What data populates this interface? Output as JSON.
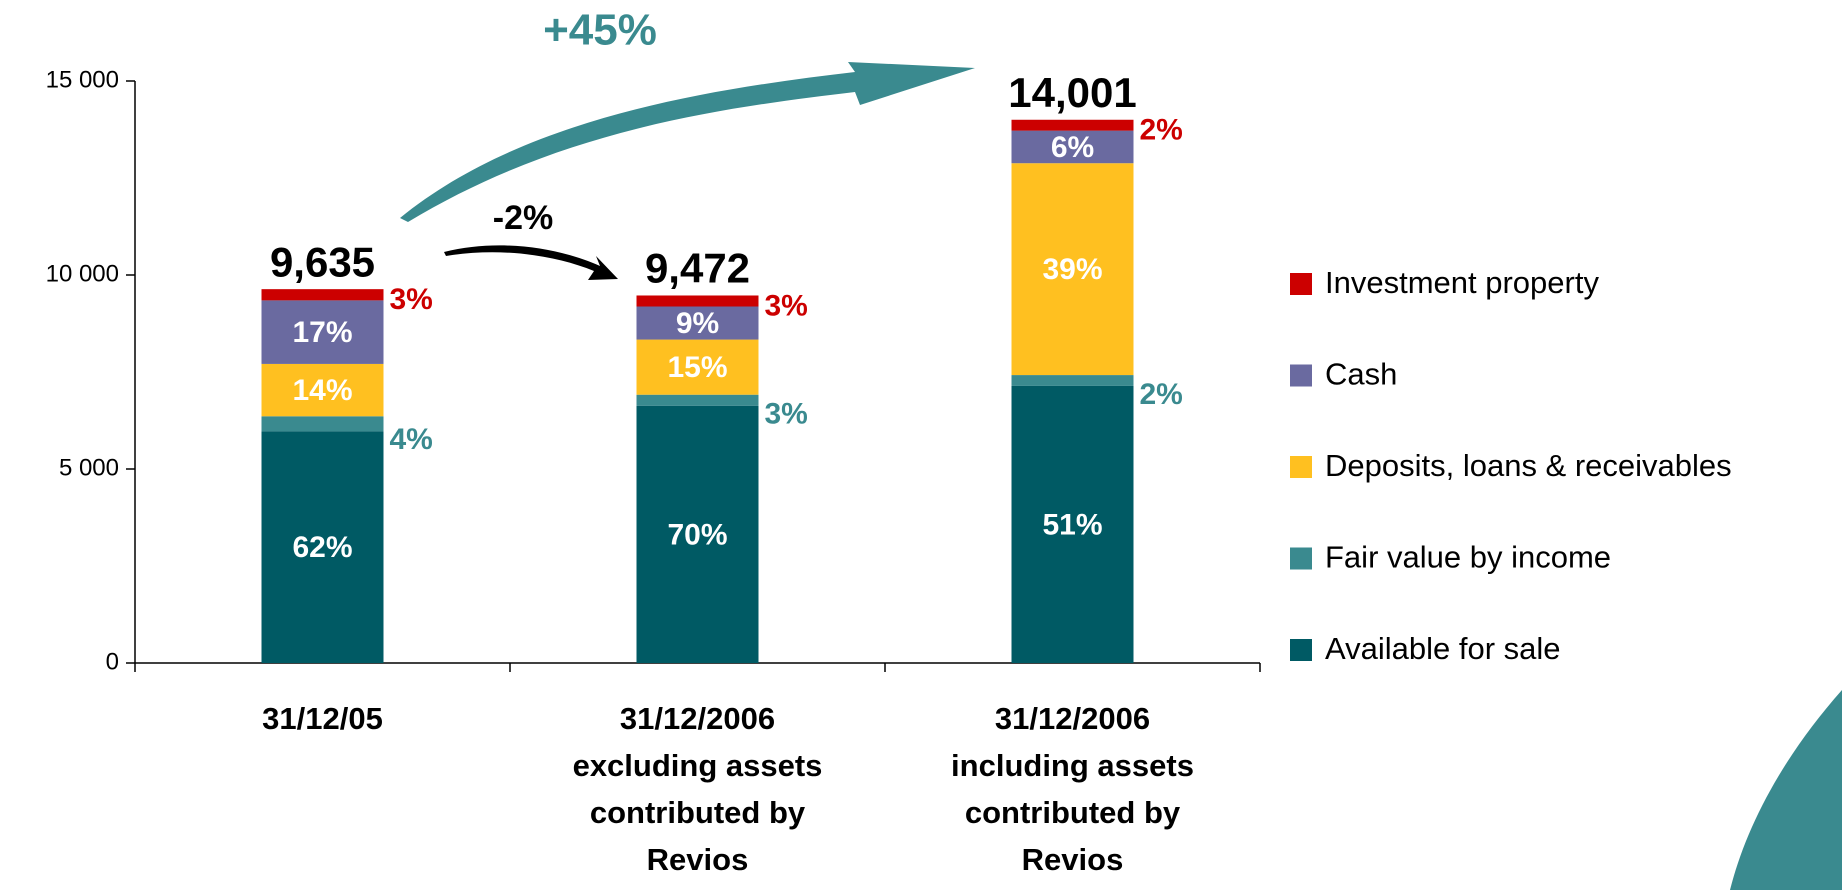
{
  "chart_data": {
    "type": "stacked-bar",
    "categories": [
      "31/12/05",
      "31/12/2006\nexcluding assets\ncontributed by\nRevios",
      "31/12/2006\nincluding assets\ncontributed by\nRevios"
    ],
    "series": [
      {
        "name": "Available for sale",
        "color": "#005a64",
        "values": [
          5974,
          6631,
          7141
        ],
        "value_labels": [
          "62%",
          "70%",
          "51%"
        ]
      },
      {
        "name": "Fair value by income",
        "color": "#3a8a8f",
        "values": [
          385,
          284,
          280
        ],
        "value_labels": [
          "4%",
          "3%",
          "2%"
        ]
      },
      {
        "name": "Deposits, loans & receivables",
        "color": "#ffc020",
        "values": [
          1349,
          1421,
          5460
        ],
        "value_labels": [
          "14%",
          "15%",
          "39%"
        ]
      },
      {
        "name": "Cash",
        "color": "#6a6aa0",
        "values": [
          1638,
          852,
          840
        ],
        "value_labels": [
          "17%",
          "9%",
          "6%"
        ]
      },
      {
        "name": "Investment property",
        "color": "#cc0000",
        "values": [
          289,
          284,
          280
        ],
        "value_labels": [
          "3%",
          "3%",
          "2%"
        ]
      }
    ],
    "totals": [
      9635,
      9472,
      14001
    ],
    "total_labels": [
      "9,635",
      "9,472",
      "14,001"
    ],
    "annotations": [
      "+45%",
      "-2%"
    ],
    "ylim": [
      0,
      15000
    ],
    "yticks": [
      0,
      {
        "value": 5000,
        "label": "5 000"
      },
      {
        "value": 10000,
        "label": "10 000"
      },
      {
        "value": 15000,
        "label": "15 000"
      }
    ],
    "grid": false,
    "legend": "right"
  }
}
